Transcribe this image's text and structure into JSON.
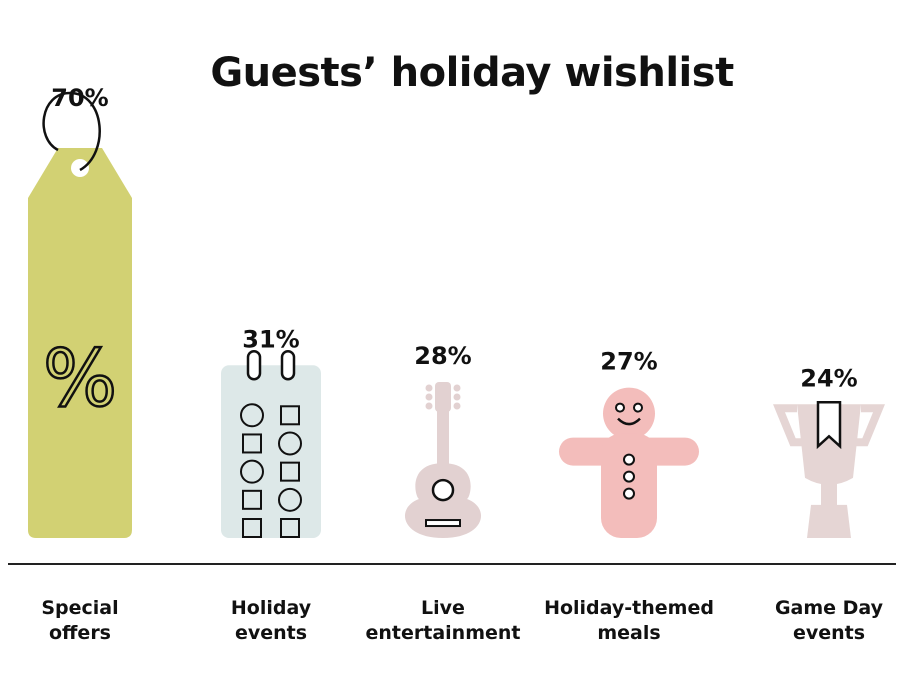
{
  "chart_data": {
    "type": "bar",
    "title": "Guests’ holiday wishlist",
    "categories": [
      [
        "Special",
        "offers"
      ],
      [
        "Holiday",
        "events"
      ],
      [
        "Live",
        "entertainment"
      ],
      [
        "Holiday-themed",
        "meals"
      ],
      [
        "Game Day",
        "events"
      ]
    ],
    "values": [
      70,
      31,
      28,
      27,
      24
    ],
    "value_labels": [
      "70%",
      "31%",
      "28%",
      "27%",
      "24%"
    ],
    "unit": "%",
    "icons": [
      "price-tag-icon",
      "calendar-checklist-icon",
      "guitar-icon",
      "gingerbread-man-icon",
      "trophy-icon"
    ],
    "colors": [
      "#d2d173",
      "#dde8e8",
      "#e2d1d1",
      "#f3bdbb",
      "#e5d5d4"
    ],
    "ylim": [
      0,
      70
    ],
    "grid": false,
    "legend": "none"
  }
}
